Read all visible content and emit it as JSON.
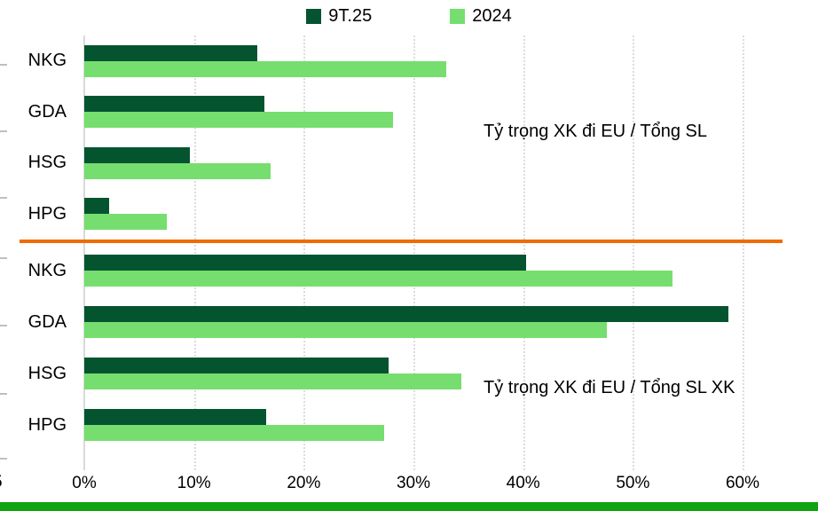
{
  "colors": {
    "series_dark": "#055430",
    "series_light": "#76DE6E",
    "divider": "#F06B00",
    "bottom_strip": "#10A310",
    "gridline": "#DCDCDC"
  },
  "edge_fragment": {
    "text": "5"
  },
  "chart_data": {
    "type": "bar",
    "orientation": "horizontal",
    "legend": {
      "position": "top-center",
      "entries": [
        {
          "name": "9T.25",
          "color": "#055430"
        },
        {
          "name": "2024",
          "color": "#76DE6E"
        }
      ]
    },
    "x_axis": {
      "unit": "%",
      "min": 0,
      "max": 60,
      "tick_labels": [
        "0%",
        "10%",
        "20%",
        "30%",
        "40%",
        "50%",
        "60%"
      ],
      "grid": "dotted-vertical"
    },
    "panels": [
      {
        "title": "Tỷ trọng XK đi EU / Tổng SL",
        "categories": [
          "NKG",
          "GDA",
          "HSG",
          "HPG"
        ],
        "series": [
          {
            "name": "9T.25",
            "values": [
              15.8,
              16.4,
              9.6,
              2.3
            ]
          },
          {
            "name": "2024",
            "values": [
              33.0,
              28.1,
              17.0,
              7.5
            ]
          }
        ]
      },
      {
        "title": "Tỷ trọng XK đi EU / Tổng SL XK",
        "categories": [
          "NKG",
          "GDA",
          "HSG",
          "HPG"
        ],
        "series": [
          {
            "name": "9T.25",
            "values": [
              40.3,
              58.7,
              27.7,
              16.6
            ]
          },
          {
            "name": "2024",
            "values": [
              53.6,
              47.6,
              34.4,
              27.3
            ]
          }
        ]
      }
    ]
  }
}
